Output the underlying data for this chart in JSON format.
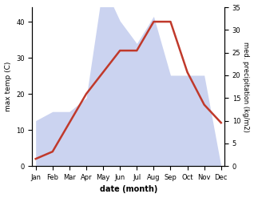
{
  "months": [
    "Jan",
    "Feb",
    "Mar",
    "Apr",
    "May",
    "Jun",
    "Jul",
    "Aug",
    "Sep",
    "Oct",
    "Nov",
    "Dec"
  ],
  "temperature": [
    2,
    4,
    12,
    20,
    26,
    32,
    32,
    40,
    40,
    26,
    17,
    12
  ],
  "precipitation": [
    10,
    12,
    12,
    15,
    40,
    32,
    27,
    33,
    20,
    20,
    20,
    0
  ],
  "temp_color": "#c0392b",
  "precip_color": "#b0bce8",
  "precip_fill_alpha": 0.65,
  "xlabel": "date (month)",
  "ylabel_left": "max temp (C)",
  "ylabel_right": "med. precipitation (kg/m2)",
  "ylim_left": [
    0,
    44
  ],
  "ylim_right": [
    0,
    35
  ],
  "yticks_left": [
    0,
    10,
    20,
    30,
    40
  ],
  "yticks_right": [
    0,
    5,
    10,
    15,
    20,
    25,
    30,
    35
  ],
  "background_color": "#ffffff",
  "line_width": 1.8
}
